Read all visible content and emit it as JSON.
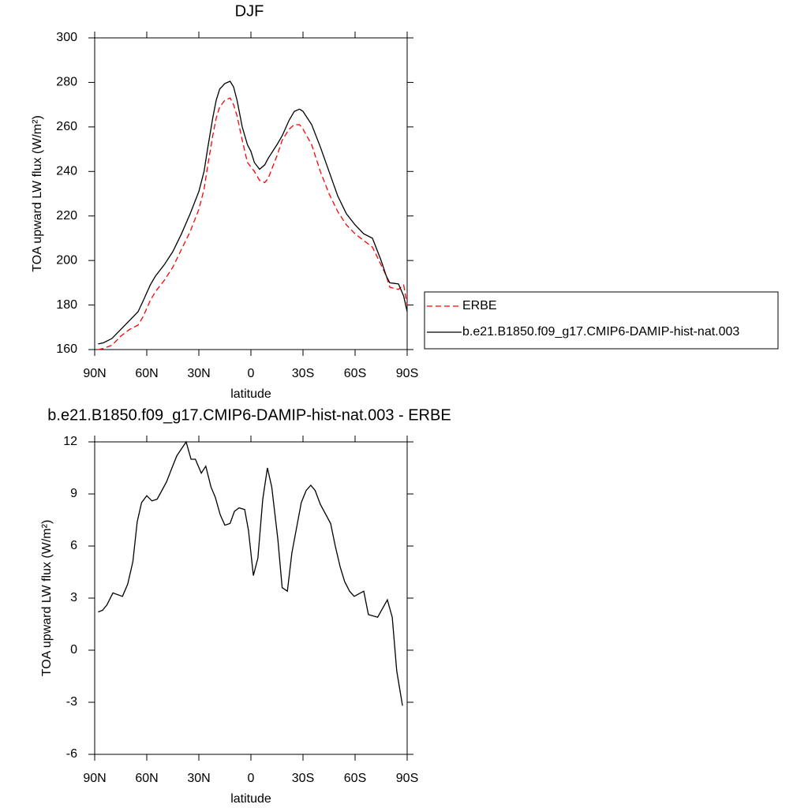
{
  "chart_data": [
    {
      "type": "line",
      "title": "DJF",
      "xlabel": "latitude",
      "ylabel": "TOA upward LW flux (W/m²)",
      "x": [
        88,
        85,
        80,
        75,
        70,
        65,
        62,
        58,
        55,
        50,
        45,
        40,
        35,
        30,
        27,
        25,
        22,
        20,
        18,
        15,
        12,
        10,
        8,
        5,
        2,
        0,
        -2,
        -5,
        -8,
        -10,
        -15,
        -18,
        -22,
        -25,
        -28,
        -30,
        -35,
        -40,
        -45,
        -50,
        -55,
        -60,
        -65,
        -70,
        -75,
        -78,
        -80,
        -85,
        -88,
        -90
      ],
      "series": [
        {
          "name": "ERBE",
          "color": "#ff0000",
          "dashed": true,
          "values": [
            160,
            160.5,
            162,
            166,
            169,
            171,
            175,
            182,
            186,
            191,
            197,
            205,
            213,
            223,
            232,
            242,
            256,
            264,
            269,
            272,
            273,
            270,
            265,
            254,
            244,
            242,
            240,
            236,
            235,
            237,
            247,
            254,
            259,
            261,
            261,
            259,
            252,
            240,
            230,
            222,
            216,
            212,
            209,
            206,
            198,
            193,
            188,
            187,
            189,
            180
          ]
        },
        {
          "name": "b.e21.B1850.f09_g17.CMIP6-DAMIP-hist-nat.003",
          "color": "#000000",
          "dashed": false,
          "values": [
            162.5,
            163,
            165,
            169,
            173,
            177,
            182,
            189,
            193,
            198,
            204,
            212,
            221,
            231,
            240,
            250,
            264,
            272,
            277,
            279.5,
            280.5,
            278,
            272,
            260,
            252,
            249,
            244,
            241,
            243,
            246,
            252,
            256,
            263,
            267,
            268,
            267,
            261,
            251,
            240,
            229,
            221,
            216,
            212,
            210,
            200,
            193,
            190,
            189.5,
            184,
            177
          ]
        }
      ],
      "xlim": [
        90,
        -90
      ],
      "xticks": [
        {
          "value": 90,
          "label": "90N"
        },
        {
          "value": 60,
          "label": "60N"
        },
        {
          "value": 30,
          "label": "30N"
        },
        0,
        {
          "value": -30,
          "label": "30S"
        },
        {
          "value": -60,
          "label": "60S"
        },
        {
          "value": -90,
          "label": "90S"
        }
      ],
      "ylim": [
        160,
        300
      ],
      "yticks": [
        160,
        180,
        200,
        220,
        240,
        260,
        280,
        300
      ],
      "legend": "right"
    },
    {
      "type": "line",
      "title": "b.e21.B1850.f09_g17.CMIP6-DAMIP-hist-nat.003 - ERBE",
      "xlabel": "latitude",
      "ylabel": "TOA upward LW flux (W/m²)",
      "x": [
        88,
        85.5,
        83,
        79.5,
        74,
        71,
        68,
        65.5,
        63,
        60,
        57,
        54,
        48.6,
        45.5,
        42.7,
        37.3,
        34.5,
        32,
        28.6,
        26,
        23,
        20.5,
        17.7,
        15,
        12,
        9.5,
        6.8,
        3.6,
        1.4,
        -1.4,
        -4,
        -6.8,
        -9.5,
        -12,
        -15.5,
        -18,
        -21,
        -23.6,
        -29,
        -31.8,
        -34.5,
        -37,
        -40,
        -45.9,
        -48.6,
        -51.4,
        -54,
        -56.8,
        -59.5,
        -65,
        -67.7,
        -73,
        -78.6,
        -81.4,
        -84,
        -87.3
      ],
      "series": [
        {
          "color": "#000000",
          "dashed": false,
          "values": [
            2.2,
            2.3,
            2.6,
            3.3,
            3.1,
            3.8,
            5.1,
            7.4,
            8.5,
            8.9,
            8.6,
            8.7,
            9.7,
            10.5,
            11.2,
            12,
            11.0,
            11.0,
            10.2,
            10.6,
            9.4,
            8.8,
            7.8,
            7.2,
            7.3,
            8.0,
            8.2,
            8.1,
            6.9,
            4.3,
            5.3,
            8.7,
            10.5,
            9.4,
            6.4,
            3.6,
            3.4,
            5.6,
            8.5,
            9.2,
            9.5,
            9.2,
            8.4,
            7.3,
            6.0,
            4.8,
            3.95,
            3.4,
            3.1,
            3.4,
            2.05,
            1.9,
            2.9,
            1.9,
            -1.2,
            -3.2
          ]
        }
      ],
      "xlim": [
        90,
        -90
      ],
      "xticks": [
        {
          "value": 90,
          "label": "90N"
        },
        {
          "value": 60,
          "label": "60N"
        },
        {
          "value": 30,
          "label": "30N"
        },
        0,
        {
          "value": -30,
          "label": "30S"
        },
        {
          "value": -60,
          "label": "60S"
        },
        {
          "value": -90,
          "label": "90S"
        }
      ],
      "ylim": [
        -6,
        12
      ],
      "yticks": [
        -6,
        -3,
        0,
        3,
        6,
        9,
        12
      ]
    }
  ]
}
